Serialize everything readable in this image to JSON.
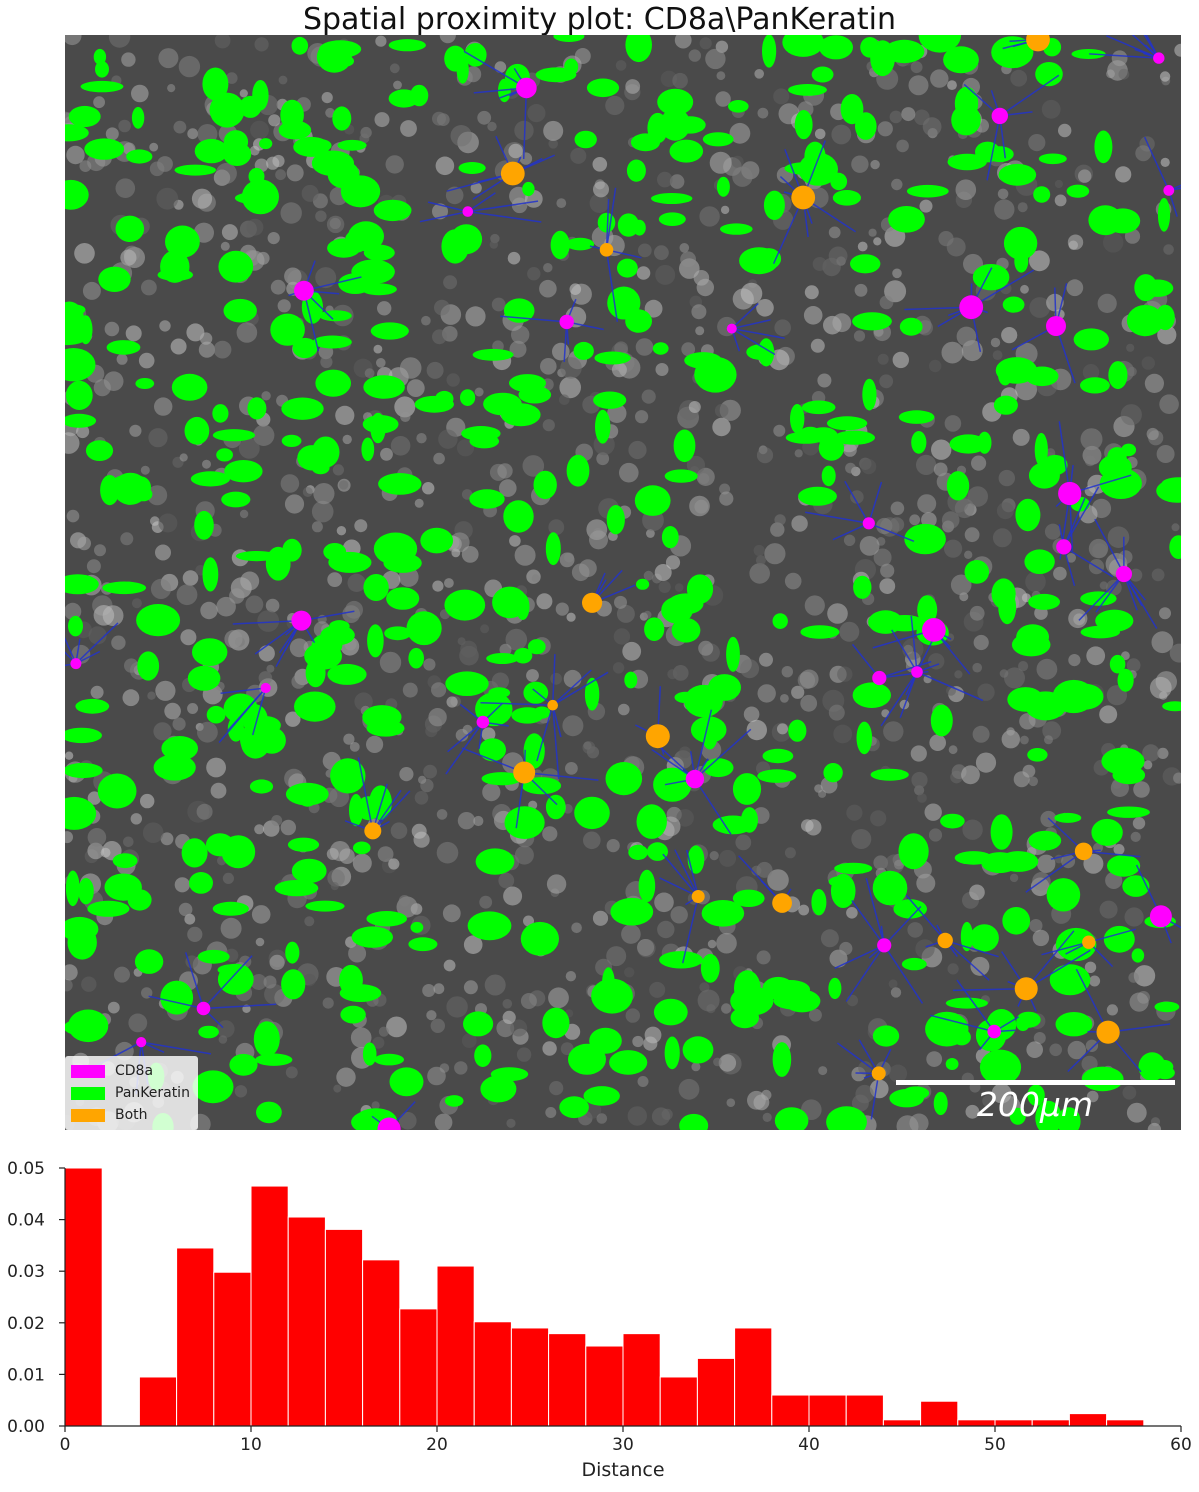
{
  "figure": {
    "title": "Spatial proximity plot: CD8a\\PanKeratin"
  },
  "legend": [
    {
      "label": "CD8a",
      "color": "#ff00ff"
    },
    {
      "label": "PanKeratin",
      "color": "#00ff00"
    },
    {
      "label": "Both",
      "color": "#ffa500"
    }
  ],
  "scalebar": {
    "label": "200μm"
  },
  "colors": {
    "background_tissue": "#4a4a4a",
    "connection_lines": "#2233cc",
    "histogram_bars": "#ff0000"
  },
  "chart_data": {
    "type": "bar",
    "xlabel": "Distance",
    "ylabel": "",
    "xlim": [
      0,
      60
    ],
    "ylim": [
      0,
      0.05
    ],
    "xticks": [
      0,
      10,
      20,
      30,
      40,
      50,
      60
    ],
    "yticks": [
      0.0,
      0.01,
      0.02,
      0.03,
      0.04,
      0.05
    ],
    "ytick_labels": [
      "0.00",
      "0.01",
      "0.02",
      "0.03",
      "0.04",
      "0.05"
    ],
    "bin_width": 2,
    "bins": [
      {
        "x0": 0,
        "value": 0.05
      },
      {
        "x0": 4,
        "value": 0.0095
      },
      {
        "x0": 6,
        "value": 0.0345
      },
      {
        "x0": 8,
        "value": 0.0298
      },
      {
        "x0": 10,
        "value": 0.0465
      },
      {
        "x0": 12,
        "value": 0.0405
      },
      {
        "x0": 14,
        "value": 0.0381
      },
      {
        "x0": 16,
        "value": 0.0322
      },
      {
        "x0": 18,
        "value": 0.0227
      },
      {
        "x0": 20,
        "value": 0.031
      },
      {
        "x0": 22,
        "value": 0.0202
      },
      {
        "x0": 24,
        "value": 0.019
      },
      {
        "x0": 26,
        "value": 0.0179
      },
      {
        "x0": 28,
        "value": 0.0155
      },
      {
        "x0": 30,
        "value": 0.0179
      },
      {
        "x0": 32,
        "value": 0.0095
      },
      {
        "x0": 34,
        "value": 0.0131
      },
      {
        "x0": 36,
        "value": 0.019
      },
      {
        "x0": 38,
        "value": 0.006
      },
      {
        "x0": 40,
        "value": 0.006
      },
      {
        "x0": 42,
        "value": 0.006
      },
      {
        "x0": 44,
        "value": 0.0012
      },
      {
        "x0": 46,
        "value": 0.0048
      },
      {
        "x0": 48,
        "value": 0.0012
      },
      {
        "x0": 50,
        "value": 0.0012
      },
      {
        "x0": 52,
        "value": 0.0012
      },
      {
        "x0": 54,
        "value": 0.0024
      },
      {
        "x0": 56,
        "value": 0.0012
      }
    ]
  }
}
